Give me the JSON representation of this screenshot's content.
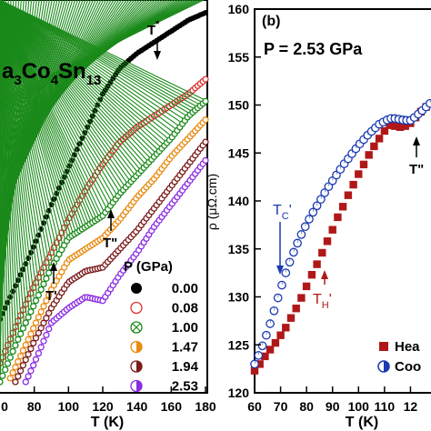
{
  "panel_a": {
    "title_parts": [
      "a",
      "3",
      "Co",
      "4",
      "Sn",
      "13"
    ],
    "legend_title": "P (GPa)",
    "annotations": [
      "T",
      "*",
      "T\"",
      "T'"
    ]
  },
  "panel_b": {
    "panel_label": "(b)",
    "pressure_label": "P = 2.53 GPa",
    "ylabel": "ρ (μΩ.cm)",
    "annotations": [
      "T",
      "C",
      "'",
      "T",
      "H",
      "'",
      "T\""
    ],
    "legend": [
      "Hea",
      "Coo"
    ]
  },
  "chart_data": [
    {
      "type": "scatter",
      "panel": "a",
      "xlabel": "T (K)",
      "xlim": [
        60,
        180
      ],
      "x_ticks": [
        "80",
        "100",
        "120",
        "140",
        "160",
        "180"
      ],
      "x_tick_partial": "0",
      "series": [
        {
          "name": "0.00",
          "color": "#000000",
          "marker": "filled-circle",
          "x": [
            60,
            70,
            80,
            90,
            100,
            110,
            120,
            130,
            140,
            150,
            160,
            170,
            180
          ],
          "y": [
            0.83,
            0.73,
            0.63,
            0.52,
            0.42,
            0.32,
            0.22,
            0.15,
            0.11,
            0.08,
            0.05,
            0.02,
            0.0
          ]
        },
        {
          "name": "0.08",
          "color": "#e03030",
          "marker": "open-circle",
          "x": [
            60,
            70,
            80,
            90,
            100,
            110,
            120,
            130,
            140,
            150,
            160,
            170,
            180
          ],
          "y": [
            0.95,
            0.84,
            0.74,
            0.65,
            0.56,
            0.48,
            0.41,
            0.35,
            0.31,
            0.28,
            0.25,
            0.22,
            0.18
          ]
        },
        {
          "name": "1.00",
          "color": "#1a8a1a",
          "marker": "crossed-circle",
          "x": [
            60,
            70,
            80,
            90,
            100,
            110,
            120,
            130,
            140,
            150,
            160,
            170,
            180
          ],
          "y": [
            1.0,
            0.89,
            0.79,
            0.69,
            0.61,
            0.58,
            0.55,
            0.49,
            0.44,
            0.39,
            0.34,
            0.28,
            0.24
          ]
        },
        {
          "name": "1.47",
          "color": "#e88a10",
          "marker": "half-circle",
          "x": [
            60,
            70,
            80,
            90,
            100,
            110,
            120,
            130,
            140,
            150,
            160,
            170,
            180
          ],
          "y": [
            1.05,
            0.95,
            0.85,
            0.75,
            0.67,
            0.64,
            0.61,
            0.56,
            0.5,
            0.45,
            0.39,
            0.34,
            0.29
          ]
        },
        {
          "name": "1.94",
          "color": "#7a1a1a",
          "marker": "half-circle",
          "x": [
            60,
            70,
            80,
            90,
            100,
            110,
            120,
            130,
            140,
            150,
            160,
            170,
            180
          ],
          "y": [
            1.09,
            0.99,
            0.89,
            0.8,
            0.73,
            0.7,
            0.69,
            0.64,
            0.59,
            0.53,
            0.47,
            0.41,
            0.35
          ]
        },
        {
          "name": "2.53",
          "color": "#8a2be2",
          "marker": "half-circle",
          "x": [
            60,
            70,
            80,
            90,
            100,
            110,
            120,
            130,
            140,
            150,
            160,
            170,
            180
          ],
          "y": [
            1.13,
            1.05,
            0.95,
            0.84,
            0.8,
            0.77,
            0.78,
            0.71,
            0.65,
            0.58,
            0.52,
            0.46,
            0.4
          ]
        }
      ]
    },
    {
      "type": "scatter",
      "panel": "b",
      "xlabel": "T (K)",
      "ylabel": "ρ (μΩ.cm)",
      "xlim": [
        60,
        130
      ],
      "ylim": [
        120,
        160
      ],
      "x_ticks": [
        "60",
        "70",
        "80",
        "90",
        "100",
        "110",
        "12"
      ],
      "y_ticks": [
        "120",
        "125",
        "130",
        "135",
        "140",
        "145",
        "150",
        "155",
        "160"
      ],
      "series": [
        {
          "name": "Hea",
          "color": "#b01818",
          "marker": "square",
          "x": [
            60,
            62,
            64,
            66,
            68,
            70,
            72,
            74,
            76,
            78,
            80,
            82,
            84,
            86,
            88,
            90,
            92,
            94,
            96,
            98,
            100,
            102,
            104,
            106,
            108,
            110,
            112,
            114,
            116,
            118,
            120,
            122,
            124,
            126,
            128,
            130
          ],
          "y": [
            122.3,
            123.0,
            123.8,
            124.5,
            125.2,
            126.0,
            126.8,
            127.8,
            128.8,
            129.9,
            131.1,
            132.3,
            133.4,
            134.6,
            135.8,
            137.0,
            138.3,
            139.4,
            140.6,
            141.7,
            142.8,
            143.8,
            144.8,
            145.7,
            146.5,
            147.3,
            147.9,
            147.8,
            147.7,
            147.8,
            148.1,
            148.7,
            149.3,
            149.8,
            150.3,
            150.8
          ]
        },
        {
          "name": "Coo",
          "color": "#1a3ab0",
          "marker": "half-circle",
          "x": [
            60,
            62,
            64,
            66,
            68,
            70,
            72,
            74,
            76,
            78,
            80,
            82,
            84,
            86,
            88,
            90,
            92,
            94,
            96,
            98,
            100,
            102,
            104,
            106,
            108,
            110,
            112,
            114,
            116,
            118,
            120,
            122,
            124,
            126,
            128,
            130
          ],
          "y": [
            123.0,
            124.2,
            125.6,
            127.2,
            129.0,
            130.8,
            132.5,
            134.0,
            135.3,
            136.5,
            137.6,
            138.6,
            139.5,
            140.4,
            141.3,
            142.1,
            142.9,
            143.7,
            144.4,
            145.1,
            145.8,
            146.4,
            147.0,
            147.5,
            148.0,
            148.3,
            148.6,
            148.6,
            148.5,
            148.4,
            148.4,
            148.8,
            149.3,
            149.8,
            150.3,
            150.8
          ]
        }
      ]
    }
  ]
}
